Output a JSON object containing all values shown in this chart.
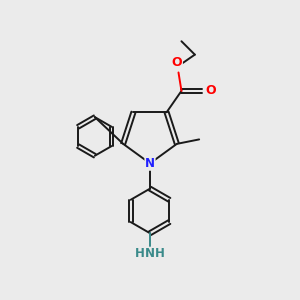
{
  "bg_color": "#ebebeb",
  "bond_color": "#1a1a1a",
  "N_color": "#2020ff",
  "O_color": "#ff0000",
  "NH2_color": "#3a8a8a",
  "line_width": 1.4,
  "font_size": 8.5,
  "figsize": [
    3.0,
    3.0
  ],
  "dpi": 100,
  "xlim": [
    0,
    10
  ],
  "ylim": [
    0,
    10
  ]
}
